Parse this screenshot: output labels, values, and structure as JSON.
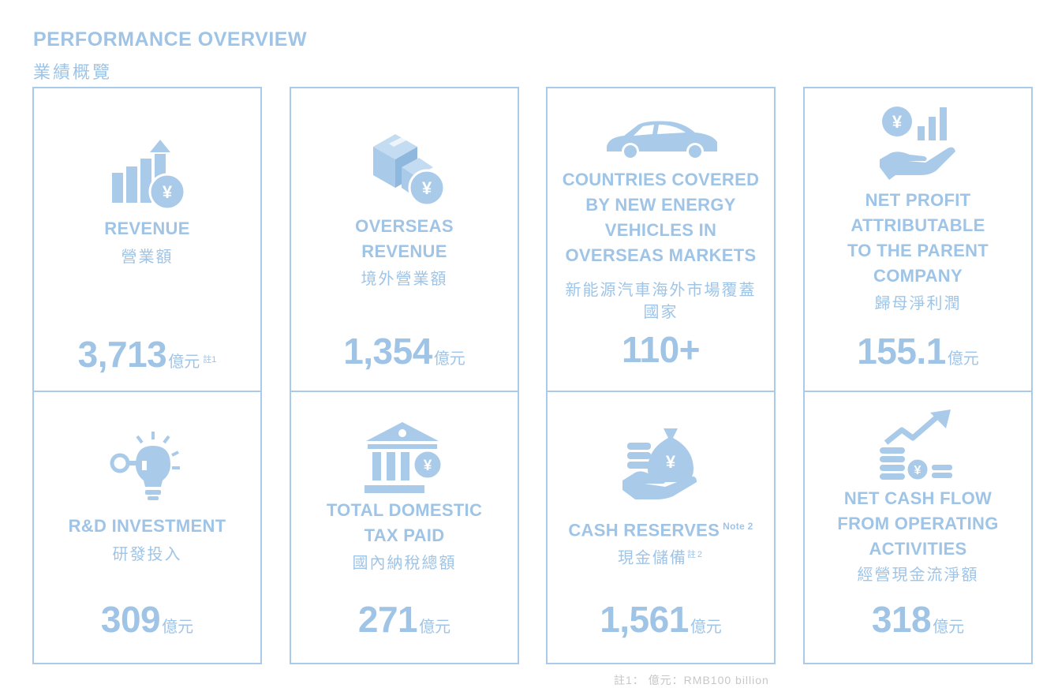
{
  "header": {
    "title_en": "PERFORMANCE OVERVIEW",
    "title_zh": "業績概覽"
  },
  "colors": {
    "accent": "#9fc4e6",
    "border": "#a9cbe9"
  },
  "cards": [
    {
      "icon": "revenue-chart-yuan-icon",
      "label_lines": [
        "REVENUE"
      ],
      "zh_lines": [
        "營業額"
      ],
      "value": "3,713",
      "unit": "億元",
      "note": "註1"
    },
    {
      "icon": "boxes-yuan-icon",
      "label_lines": [
        "OVERSEAS",
        "REVENUE"
      ],
      "zh_lines": [
        "境外營業額"
      ],
      "value": "1,354",
      "unit": "億元"
    },
    {
      "icon": "car-icon",
      "label_lines": [
        "COUNTRIES COVERED",
        "BY NEW ENERGY",
        "VEHICLES IN",
        "OVERSEAS MARKETS"
      ],
      "zh_lines": [
        "新能源汽車海外市場覆蓋",
        "國家"
      ],
      "value": "110+"
    },
    {
      "icon": "hand-yuan-chart-icon",
      "label_lines": [
        "NET PROFIT",
        "ATTRIBUTABLE",
        "TO THE PARENT",
        "COMPANY"
      ],
      "zh_lines": [
        "歸母淨利潤"
      ],
      "value": "155.1",
      "unit": "億元"
    },
    {
      "icon": "key-lightbulb-icon",
      "label_lines": [
        "R&D INVESTMENT"
      ],
      "zh_lines": [
        "研發投入"
      ],
      "value": "309",
      "unit": "億元"
    },
    {
      "icon": "bank-yuan-icon",
      "label_lines": [
        "TOTAL DOMESTIC",
        "TAX PAID"
      ],
      "zh_lines": [
        "國內納稅總額"
      ],
      "value": "271",
      "unit": "億元"
    },
    {
      "icon": "money-bag-hand-icon",
      "label_lines": [
        "CASH RESERVES"
      ],
      "label_note": "Note 2",
      "zh_lines": [
        "現金儲備"
      ],
      "zh_note": "註2",
      "value": "1,561",
      "unit": "億元"
    },
    {
      "icon": "coins-growth-arrow-icon",
      "label_lines": [
        "NET CASH FLOW",
        "FROM OPERATING",
        "ACTIVITIES"
      ],
      "zh_lines": [
        "經營現金流淨額"
      ],
      "value": "318",
      "unit": "億元"
    }
  ],
  "footnote": "註1：   億元：RMB100 billion"
}
